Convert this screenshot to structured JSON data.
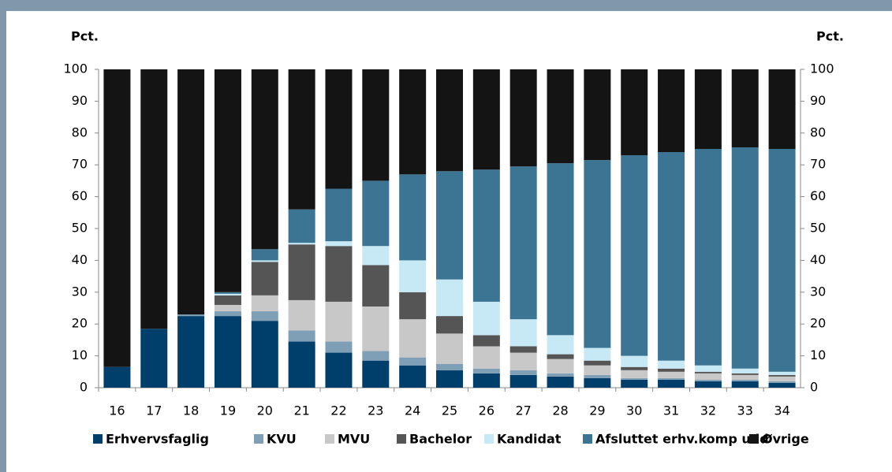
{
  "chart_data": {
    "type": "stacked_bar",
    "y_label": "Pct.",
    "y2_label": "Pct.",
    "categories": [
      "16",
      "17",
      "18",
      "19",
      "20",
      "21",
      "22",
      "23",
      "24",
      "25",
      "26",
      "27",
      "28",
      "29",
      "30",
      "31",
      "32",
      "33",
      "34"
    ],
    "series": [
      {
        "name": "Erhvervsfaglig",
        "color": "#003f6b",
        "values": [
          6.5,
          18.5,
          22.5,
          22.5,
          21,
          14.5,
          11,
          8.5,
          7,
          5.5,
          4.5,
          4,
          3.5,
          3,
          2.5,
          2.5,
          2,
          2,
          1.5
        ]
      },
      {
        "name": "KVU",
        "color": "#7f9fb7",
        "values": [
          0,
          0,
          0.5,
          1.5,
          3,
          3.5,
          3.5,
          3,
          2.5,
          2,
          1.5,
          1.5,
          1,
          1,
          0.5,
          0.5,
          0.5,
          0.5,
          0.5
        ]
      },
      {
        "name": "MVU",
        "color": "#c8c8c8",
        "values": [
          0,
          0,
          0,
          2,
          5,
          9.5,
          12.5,
          14,
          12,
          9.5,
          7,
          5.5,
          4.5,
          3,
          2.5,
          2,
          2,
          1.5,
          1.5
        ]
      },
      {
        "name": "Bachelor",
        "color": "#555555",
        "values": [
          0,
          0,
          0,
          3,
          10.5,
          17.5,
          17.5,
          13,
          8.5,
          5.5,
          3.5,
          2,
          1.5,
          1.5,
          1,
          1,
          0.5,
          0.5,
          0.5
        ]
      },
      {
        "name": "Kandidat",
        "color": "#c7e8f5",
        "values": [
          0,
          0,
          0,
          0.5,
          0.5,
          0.5,
          1.5,
          6,
          10,
          11.5,
          10.5,
          8.5,
          6,
          4,
          3.5,
          2.5,
          2,
          1.5,
          1
        ]
      },
      {
        "name": "Afsluttet erhv.komp udd",
        "color": "#3c7494",
        "values": [
          0,
          0,
          0,
          0.5,
          3.5,
          10.5,
          16.5,
          20.5,
          27,
          34,
          41.5,
          48,
          54,
          59,
          63,
          65.5,
          68,
          69.5,
          70
        ]
      },
      {
        "name": "Øvrige",
        "color": "#141414",
        "values": [
          93.5,
          81.5,
          77,
          70,
          56.5,
          44,
          37.5,
          35,
          33,
          32,
          31.5,
          30.5,
          29.5,
          28.5,
          27,
          26,
          25,
          24.5,
          25
        ]
      }
    ],
    "ylim": [
      0,
      100
    ],
    "yticks": [
      0,
      10,
      20,
      30,
      40,
      50,
      60,
      70,
      80,
      90,
      100
    ],
    "y2lim": [
      0,
      100
    ],
    "y2ticks": [
      0,
      10,
      20,
      30,
      40,
      50,
      60,
      70,
      80,
      90,
      100
    ]
  }
}
